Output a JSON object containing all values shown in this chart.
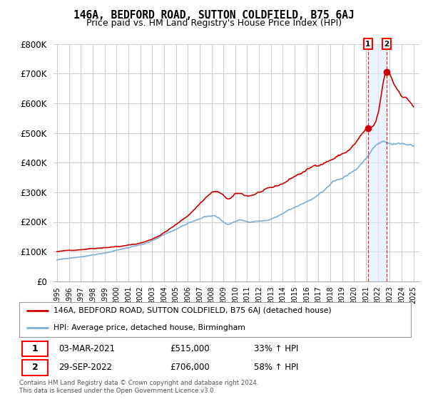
{
  "title": "146A, BEDFORD ROAD, SUTTON COLDFIELD, B75 6AJ",
  "subtitle": "Price paid vs. HM Land Registry's House Price Index (HPI)",
  "red_label": "146A, BEDFORD ROAD, SUTTON COLDFIELD, B75 6AJ (detached house)",
  "blue_label": "HPI: Average price, detached house, Birmingham",
  "footer": "Contains HM Land Registry data © Crown copyright and database right 2024.\nThis data is licensed under the Open Government Licence v3.0.",
  "point1_label": "03-MAR-2021",
  "point1_price": "£515,000",
  "point1_hpi": "33% ↑ HPI",
  "point1_year": 2021.17,
  "point1_value": 515000,
  "point2_label": "29-SEP-2022",
  "point2_price": "£706,000",
  "point2_hpi": "58% ↑ HPI",
  "point2_year": 2022.75,
  "point2_value": 706000,
  "red_color": "#cc0000",
  "blue_color": "#7bafd4",
  "shade_color": "#ddeeff",
  "background_color": "#ffffff",
  "grid_color": "#cccccc",
  "ylim": [
    0,
    800000
  ],
  "xlim_min": 1994.7,
  "xlim_max": 2025.5
}
